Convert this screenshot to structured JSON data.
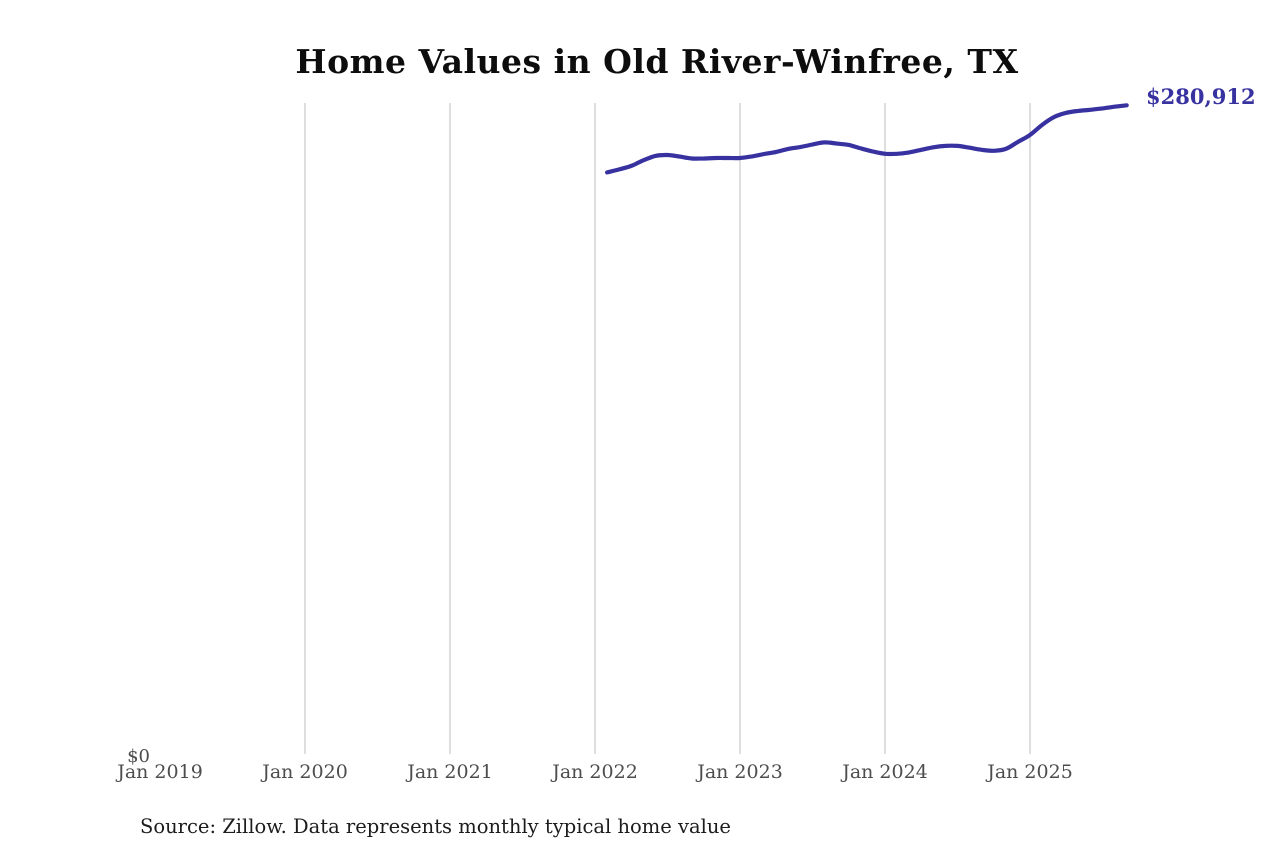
{
  "page": {
    "background": "#ffffff"
  },
  "chart_data": {
    "type": "line",
    "title": "Home Values in Old River-Winfree, TX",
    "xlabel": "",
    "ylabel": "",
    "x_tick_labels": [
      "Jan 2019",
      "Jan 2020",
      "Jan 2021",
      "Jan 2022",
      "Jan 2023",
      "Jan 2024",
      "Jan 2025"
    ],
    "y_zero_label": "$0",
    "end_label": "$280,912",
    "last_value": 280912,
    "ylim": [
      0,
      280912
    ],
    "grid": "vertical-gridlines-only",
    "legend": "none",
    "source_note": "Source: Zillow. Data represents monthly typical home value",
    "colors": {
      "line": "#3732a0",
      "end_label": "#3732a0",
      "gridline": "#cccccc",
      "tick_text": "#4d4d4d",
      "source_text": "#1c1c1c",
      "title_text": "#0d0d0d"
    },
    "series": [
      {
        "name": "Monthly typical home value",
        "points": [
          [
            "2022-02",
            252100
          ],
          [
            "2022-03",
            253400
          ],
          [
            "2022-04",
            254900
          ],
          [
            "2022-05",
            257300
          ],
          [
            "2022-06",
            259200
          ],
          [
            "2022-07",
            259600
          ],
          [
            "2022-08",
            258900
          ],
          [
            "2022-09",
            258100
          ],
          [
            "2022-10",
            258100
          ],
          [
            "2022-11",
            258300
          ],
          [
            "2022-12",
            258300
          ],
          [
            "2023-01",
            258300
          ],
          [
            "2023-02",
            259000
          ],
          [
            "2023-03",
            260000
          ],
          [
            "2023-04",
            260900
          ],
          [
            "2023-05",
            262200
          ],
          [
            "2023-06",
            263000
          ],
          [
            "2023-07",
            264100
          ],
          [
            "2023-08",
            265000
          ],
          [
            "2023-09",
            264500
          ],
          [
            "2023-10",
            263900
          ],
          [
            "2023-11",
            262400
          ],
          [
            "2023-12",
            261100
          ],
          [
            "2024-01",
            260100
          ],
          [
            "2024-02",
            260100
          ],
          [
            "2024-03",
            260700
          ],
          [
            "2024-04",
            261800
          ],
          [
            "2024-05",
            262900
          ],
          [
            "2024-06",
            263500
          ],
          [
            "2024-07",
            263500
          ],
          [
            "2024-08",
            262700
          ],
          [
            "2024-09",
            261800
          ],
          [
            "2024-10",
            261400
          ],
          [
            "2024-11",
            262200
          ],
          [
            "2024-12",
            265200
          ],
          [
            "2025-01",
            268200
          ],
          [
            "2025-02",
            272500
          ],
          [
            "2025-03",
            275900
          ],
          [
            "2025-04",
            277700
          ],
          [
            "2025-05",
            278500
          ],
          [
            "2025-06",
            279000
          ],
          [
            "2025-07",
            279600
          ],
          [
            "2025-08",
            280300
          ],
          [
            "2025-09",
            280912
          ]
        ]
      }
    ]
  }
}
